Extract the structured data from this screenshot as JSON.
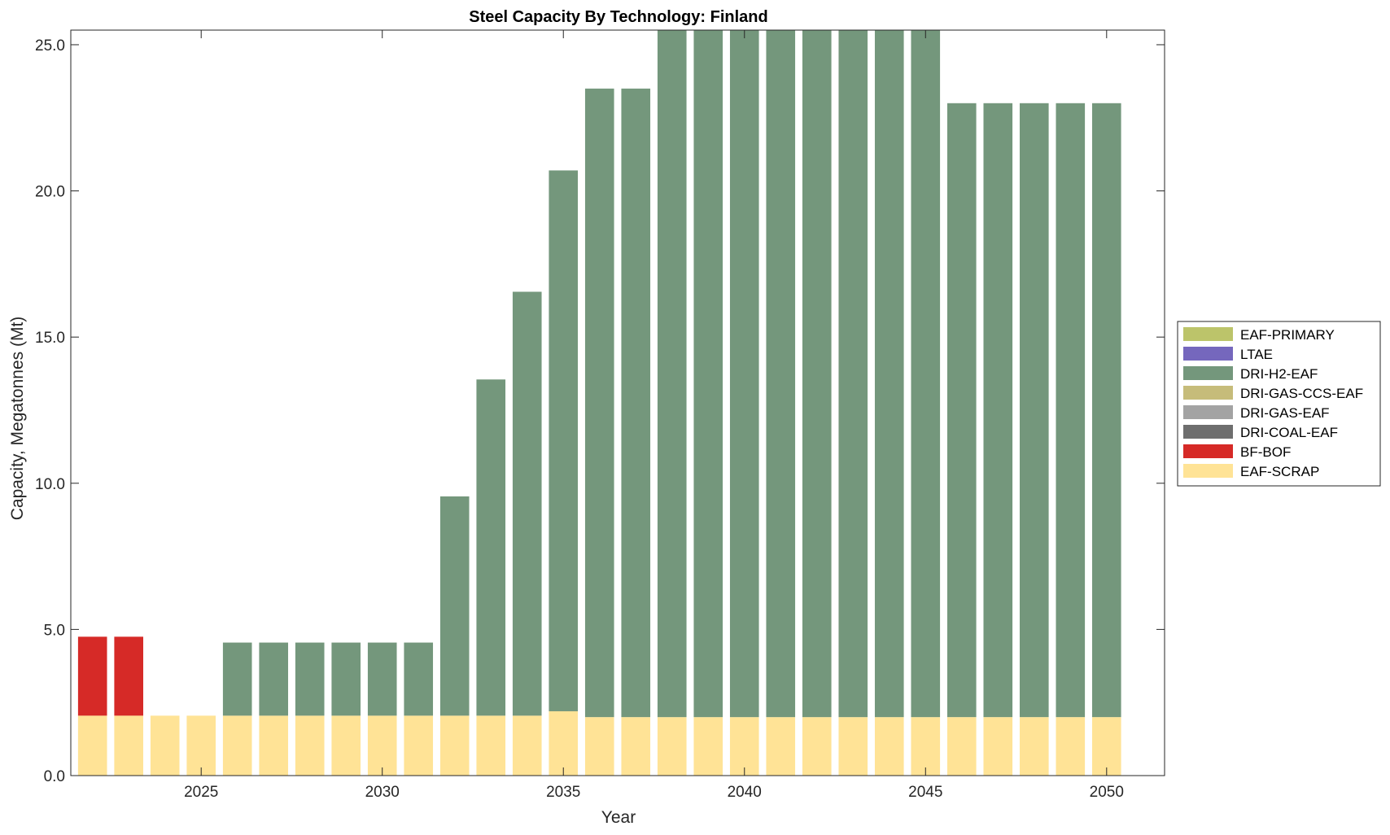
{
  "chart_data": {
    "type": "bar",
    "stacked": true,
    "title": "Steel Capacity By Technology: Finland",
    "xlabel": "Year",
    "ylabel": "Capacity, Megatonnes (Mt)",
    "ylim": [
      0,
      25.5
    ],
    "xlim": [
      2021.4,
      2051.6
    ],
    "yticks": [
      0,
      5,
      10,
      15,
      20,
      25
    ],
    "ytick_labels": [
      "0.0",
      "5.0",
      "10.0",
      "15.0",
      "20.0",
      "25.0"
    ],
    "xticks": [
      2025,
      2030,
      2035,
      2040,
      2045,
      2050
    ],
    "xtick_labels": [
      "2025",
      "2030",
      "2035",
      "2040",
      "2045",
      "2050"
    ],
    "grid": false,
    "legend_position": "outside-right",
    "legend_order": [
      "EAF-PRIMARY",
      "LTAE",
      "DRI-H2-EAF",
      "DRI-GAS-CCS-EAF",
      "DRI-GAS-EAF",
      "DRI-COAL-EAF",
      "BF-BOF",
      "EAF-SCRAP"
    ],
    "x": [
      2022,
      2023,
      2024,
      2025,
      2026,
      2027,
      2028,
      2029,
      2030,
      2031,
      2032,
      2033,
      2034,
      2035,
      2036,
      2037,
      2038,
      2039,
      2040,
      2041,
      2042,
      2043,
      2044,
      2045,
      2046,
      2047,
      2048,
      2049,
      2050
    ],
    "series": [
      {
        "name": "EAF-SCRAP",
        "color": "#FFE396",
        "values": [
          2.05,
          2.05,
          2.05,
          2.05,
          2.05,
          2.05,
          2.05,
          2.05,
          2.05,
          2.05,
          2.05,
          2.05,
          2.05,
          2.2,
          2.0,
          2.0,
          2.0,
          2.0,
          2.0,
          2.0,
          2.0,
          2.0,
          2.0,
          2.0,
          2.0,
          2.0,
          2.0,
          2.0,
          2.0
        ]
      },
      {
        "name": "BF-BOF",
        "color": "#D62A27",
        "values": [
          2.7,
          2.7,
          0,
          0,
          0,
          0,
          0,
          0,
          0,
          0,
          0,
          0,
          0,
          0,
          0,
          0,
          0,
          0,
          0,
          0,
          0,
          0,
          0,
          0,
          0,
          0,
          0,
          0,
          0
        ]
      },
      {
        "name": "DRI-COAL-EAF",
        "color": "#6E6E6E",
        "values": [
          0,
          0,
          0,
          0,
          0,
          0,
          0,
          0,
          0,
          0,
          0,
          0,
          0,
          0,
          0,
          0,
          0,
          0,
          0,
          0,
          0,
          0,
          0,
          0,
          0,
          0,
          0,
          0,
          0
        ]
      },
      {
        "name": "DRI-GAS-EAF",
        "color": "#A3A3A3",
        "values": [
          0,
          0,
          0,
          0,
          0,
          0,
          0,
          0,
          0,
          0,
          0,
          0,
          0,
          0,
          0,
          0,
          0,
          0,
          0,
          0,
          0,
          0,
          0,
          0,
          0,
          0,
          0,
          0,
          0
        ]
      },
      {
        "name": "DRI-GAS-CCS-EAF",
        "color": "#C6BC7A",
        "values": [
          0,
          0,
          0,
          0,
          0,
          0,
          0,
          0,
          0,
          0,
          0,
          0,
          0,
          0,
          0,
          0,
          0,
          0,
          0,
          0,
          0,
          0,
          0,
          0,
          0,
          0,
          0,
          0,
          0
        ]
      },
      {
        "name": "DRI-H2-EAF",
        "color": "#74977C",
        "values": [
          0,
          0,
          0,
          0,
          2.5,
          2.5,
          2.5,
          2.5,
          2.5,
          2.5,
          7.5,
          11.5,
          14.5,
          18.5,
          21.5,
          21.5,
          24.0,
          24.0,
          24.0,
          24.0,
          24.0,
          24.0,
          24.0,
          24.0,
          21.0,
          21.0,
          21.0,
          21.0,
          21.0
        ]
      },
      {
        "name": "LTAE",
        "color": "#7567BD",
        "values": [
          0,
          0,
          0,
          0,
          0,
          0,
          0,
          0,
          0,
          0,
          0,
          0,
          0,
          0,
          0,
          0,
          0,
          0,
          0,
          0,
          0,
          0,
          0,
          0,
          0,
          0,
          0,
          0,
          0
        ]
      },
      {
        "name": "EAF-PRIMARY",
        "color": "#BCC46A",
        "values": [
          0,
          0,
          0,
          0,
          0,
          0,
          0,
          0,
          0,
          0,
          0,
          0,
          0,
          0,
          0,
          0,
          0,
          0,
          0,
          0,
          0,
          0,
          0,
          0,
          0,
          0,
          0,
          0,
          0
        ]
      }
    ]
  }
}
